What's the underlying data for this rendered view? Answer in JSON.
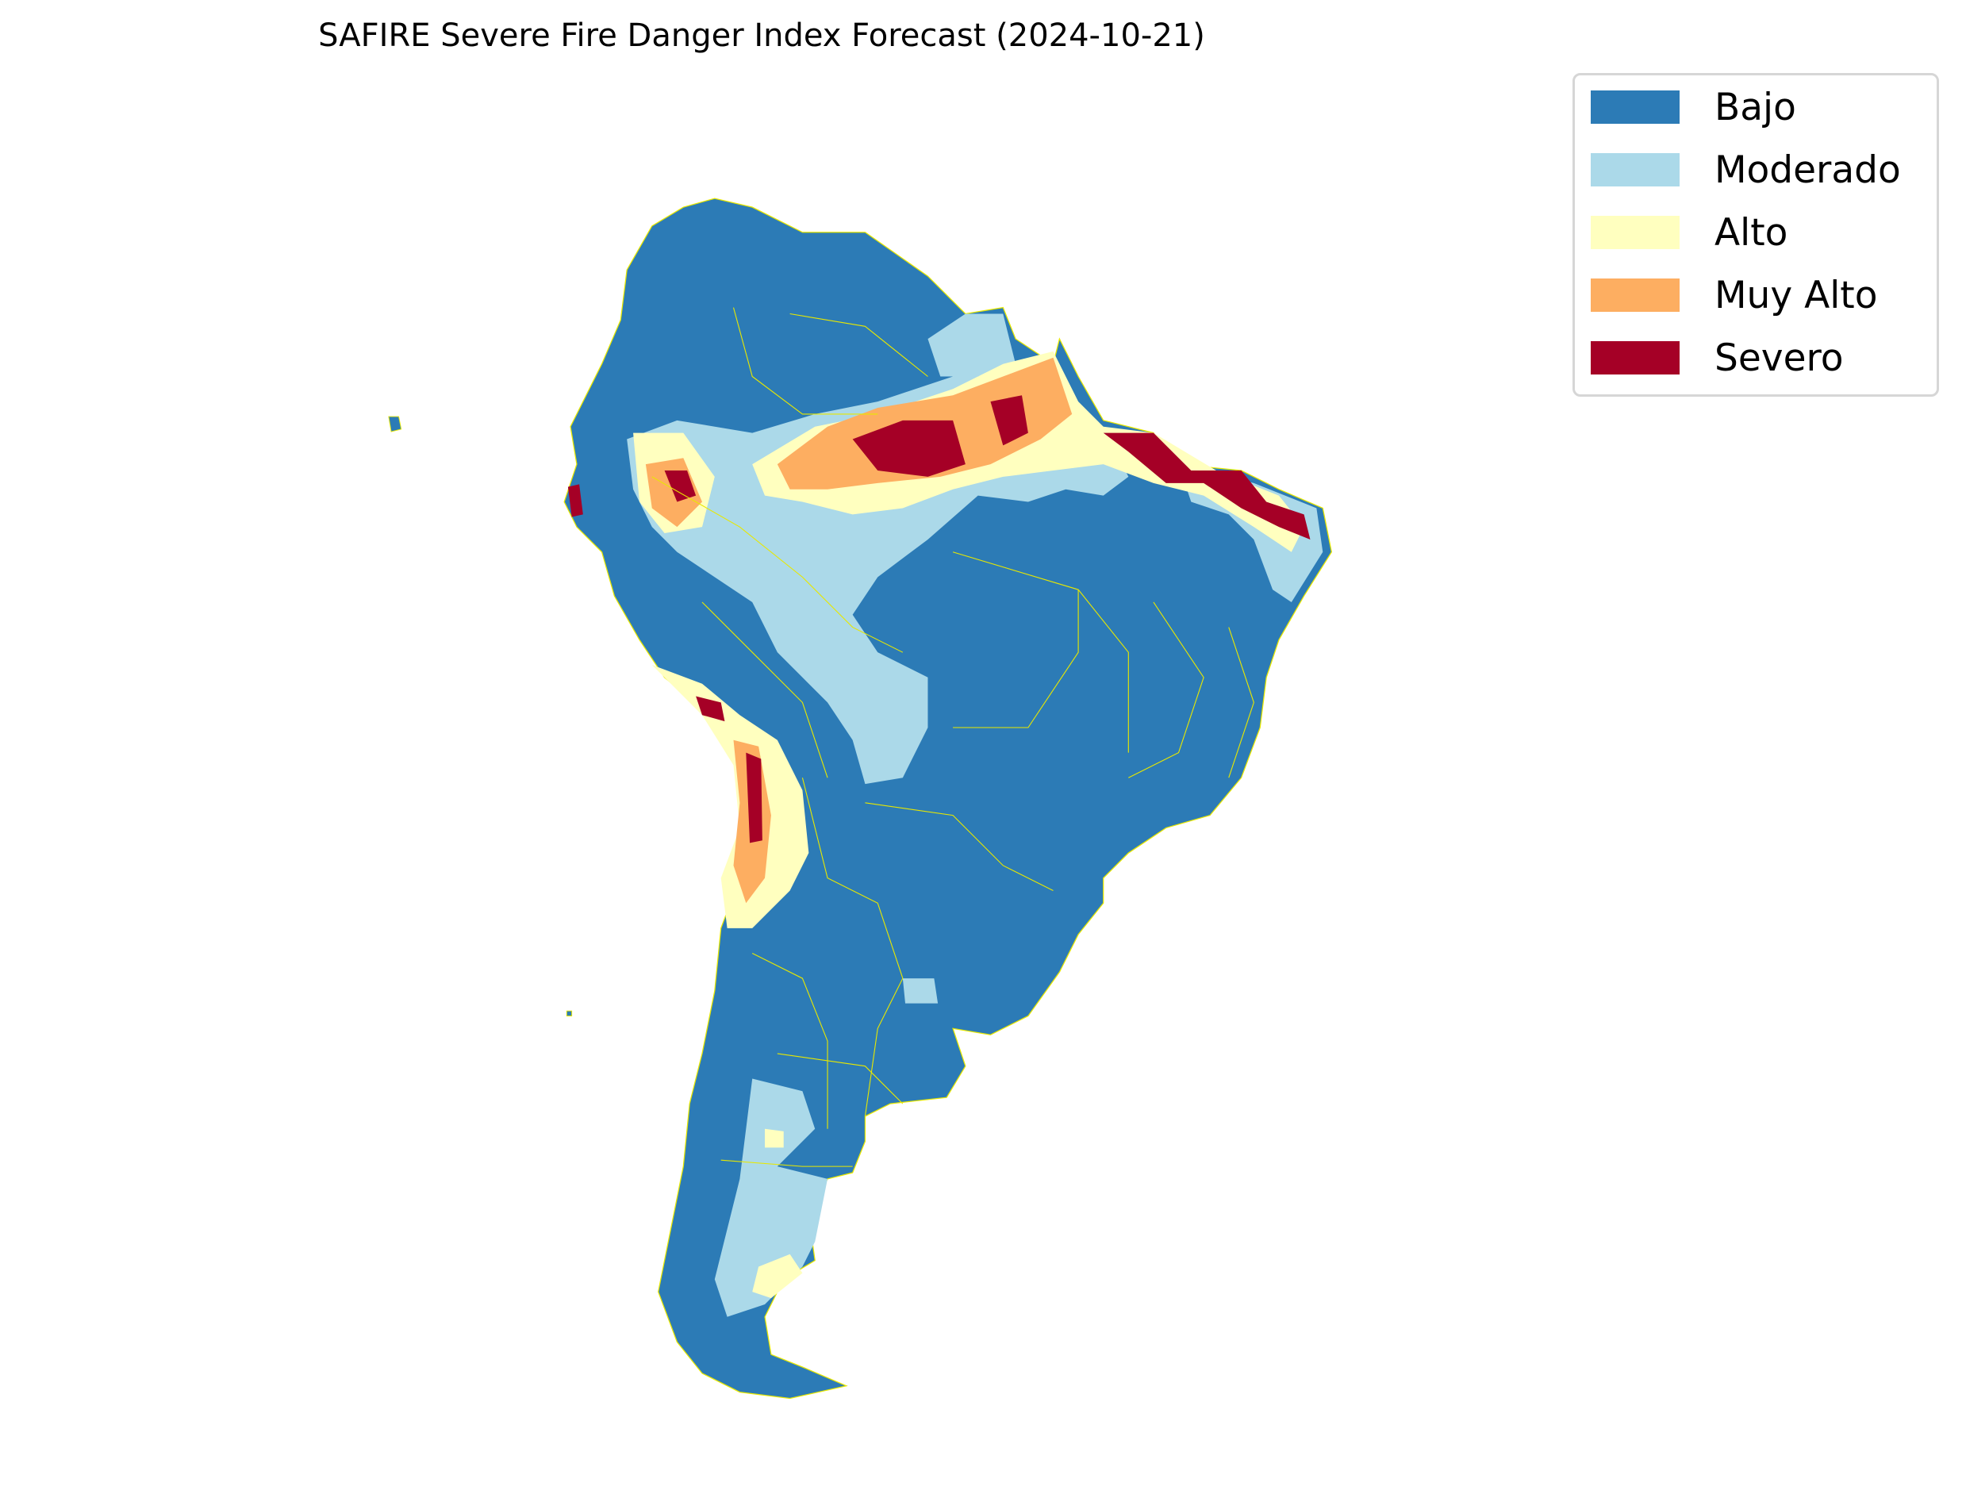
{
  "title": "SAFIRE Severe Fire Danger Index Forecast (2024-10-21)",
  "legend": {
    "placement": "top-right",
    "items": [
      {
        "label": "Bajo",
        "color": "#2c7bb6"
      },
      {
        "label": "Moderado",
        "color": "#abd9e9"
      },
      {
        "label": "Alto",
        "color": "#ffffbf"
      },
      {
        "label": "Muy Alto",
        "color": "#fdae61"
      },
      {
        "label": "Severo",
        "color": "#a50026"
      }
    ]
  },
  "map": {
    "region": "South America",
    "boundary_color": "#e8e800",
    "dominant_class": "Bajo"
  }
}
